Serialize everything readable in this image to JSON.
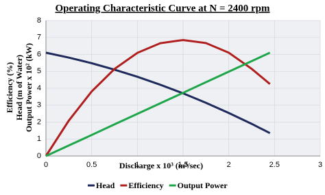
{
  "chart_data": {
    "type": "line",
    "title": "Operating Characteristic Curve at N = 2400 rpm",
    "x_label": "Discharge x 10³ (m³/sec)",
    "y_label": [
      "Efficiency (%)",
      "Head (m of Water)",
      "Output Power x 10² (kW)"
    ],
    "x": [
      0,
      0.25,
      0.5,
      0.75,
      1,
      1.25,
      1.5,
      1.75,
      2,
      2.25,
      2.45
    ],
    "series": [
      {
        "name": "Head",
        "color": "#1f2a5c",
        "values": [
          6.1,
          5.81,
          5.48,
          5.1,
          4.68,
          4.21,
          3.7,
          3.14,
          2.54,
          1.9,
          1.35
        ]
      },
      {
        "name": "Efficiency",
        "color": "#b01e1e",
        "values": [
          0,
          2.09,
          3.81,
          5.14,
          6.09,
          6.66,
          6.85,
          6.67,
          6.1,
          5.15,
          4.25
        ]
      },
      {
        "name": "Output Power",
        "color": "#1fa64a",
        "values": [
          0,
          0.62,
          1.24,
          1.87,
          2.49,
          3.11,
          3.73,
          4.36,
          4.98,
          5.6,
          6.1
        ]
      }
    ],
    "xlim": [
      0,
      3
    ],
    "xticks": [
      0,
      0.5,
      1,
      1.5,
      2,
      2.5,
      3
    ],
    "ylim": [
      0,
      8
    ],
    "yticks": [
      0,
      1,
      2,
      3,
      4,
      5,
      6,
      7,
      8
    ],
    "grid": true,
    "legend": "bottom"
  }
}
